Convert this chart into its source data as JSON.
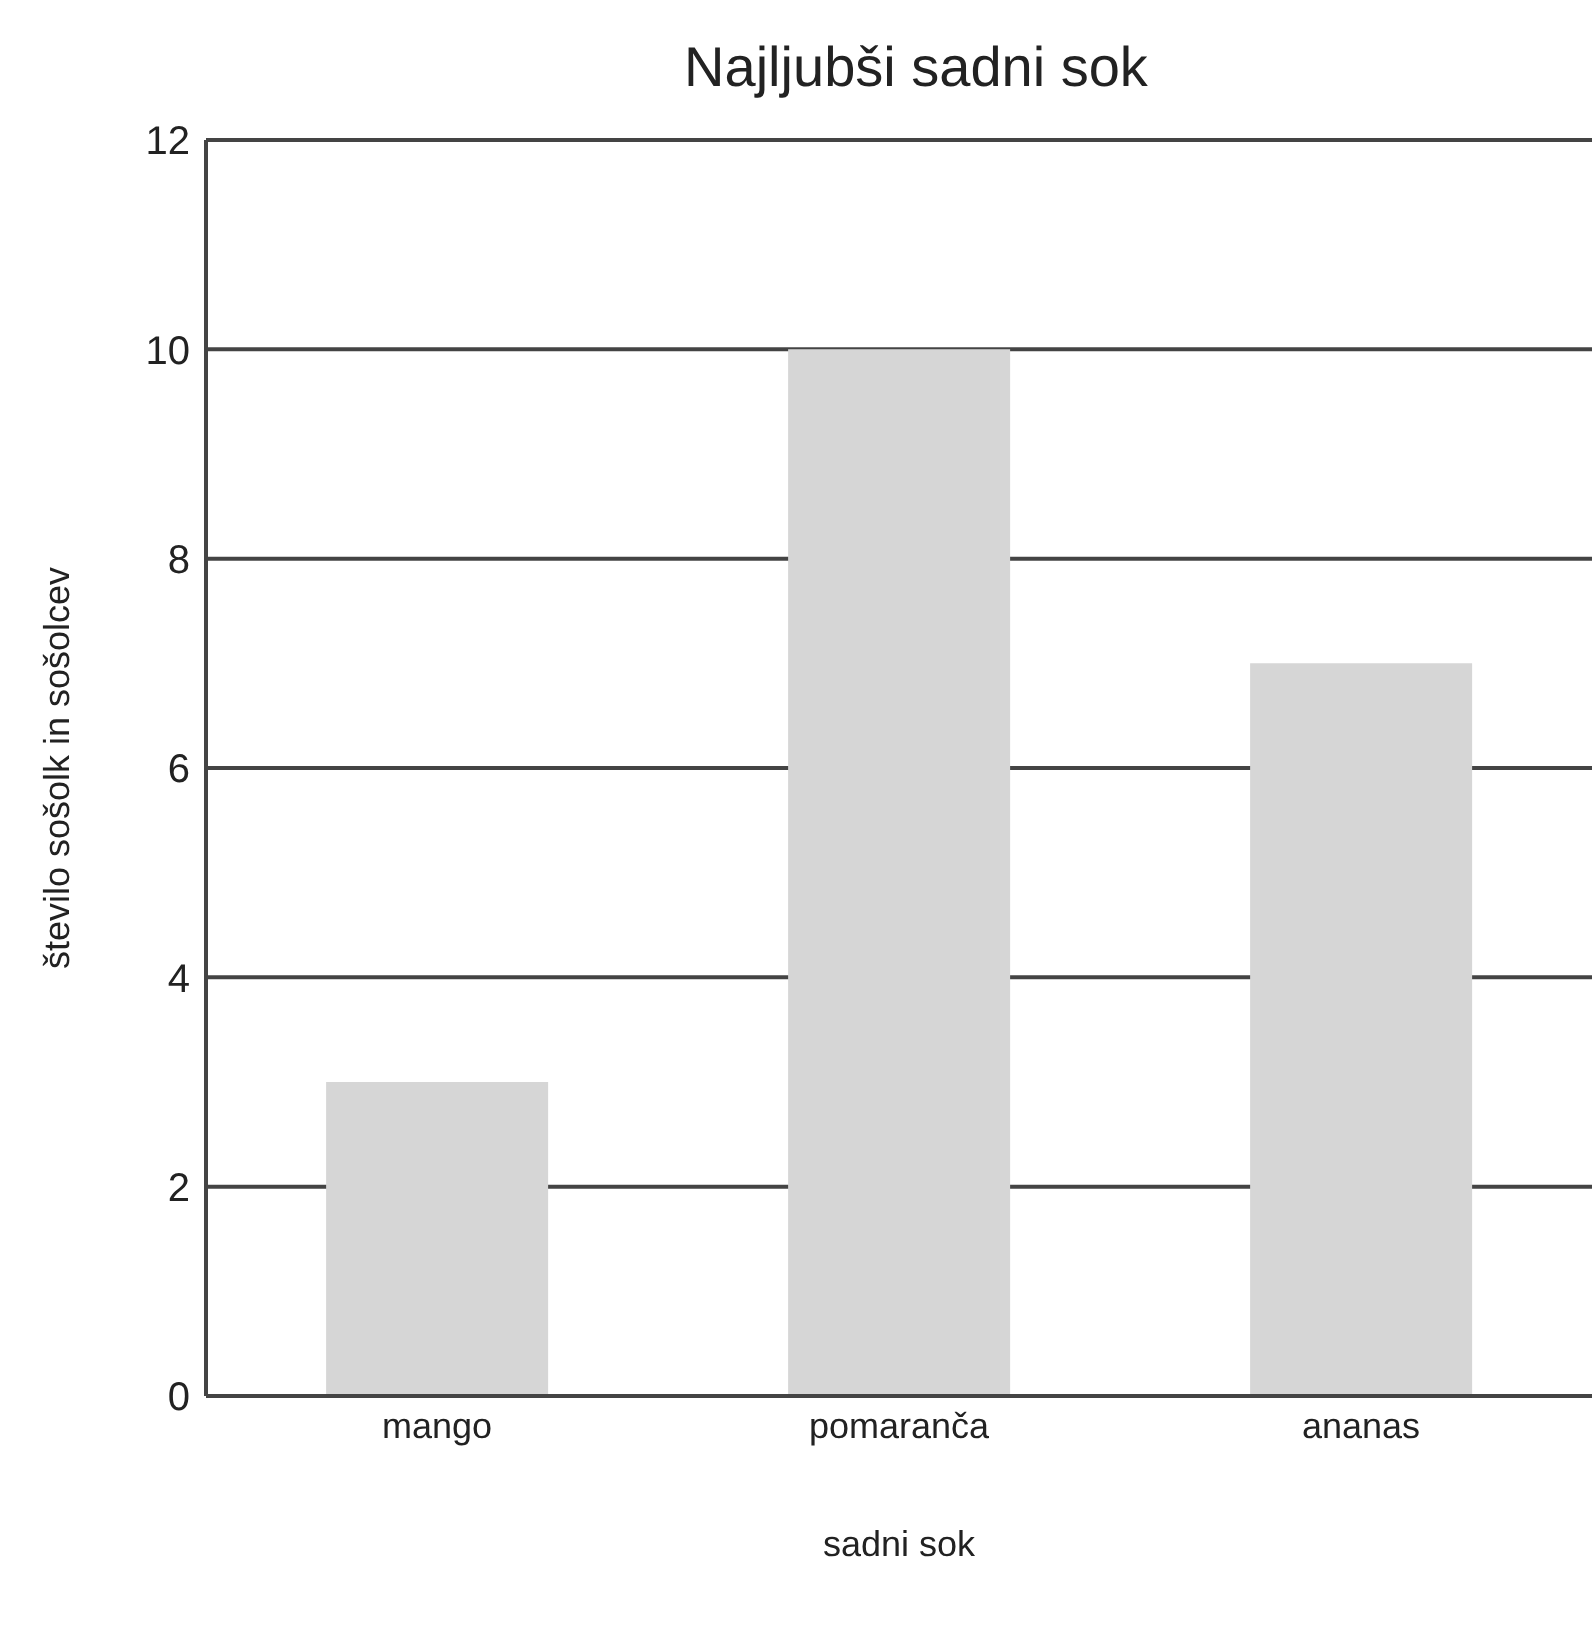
{
  "chart_data": {
    "type": "bar",
    "title": "Najljubši sadni sok",
    "xlabel": "sadni sok",
    "ylabel": "število sošolk in sošolcev",
    "categories": [
      "mango",
      "pomaranča",
      "ananas"
    ],
    "values": [
      3,
      10,
      7
    ],
    "color": "#d6d6d6",
    "ylim": [
      0,
      12
    ],
    "yticks": [
      0,
      2,
      4,
      6,
      8,
      10,
      12
    ],
    "grid": "y"
  }
}
